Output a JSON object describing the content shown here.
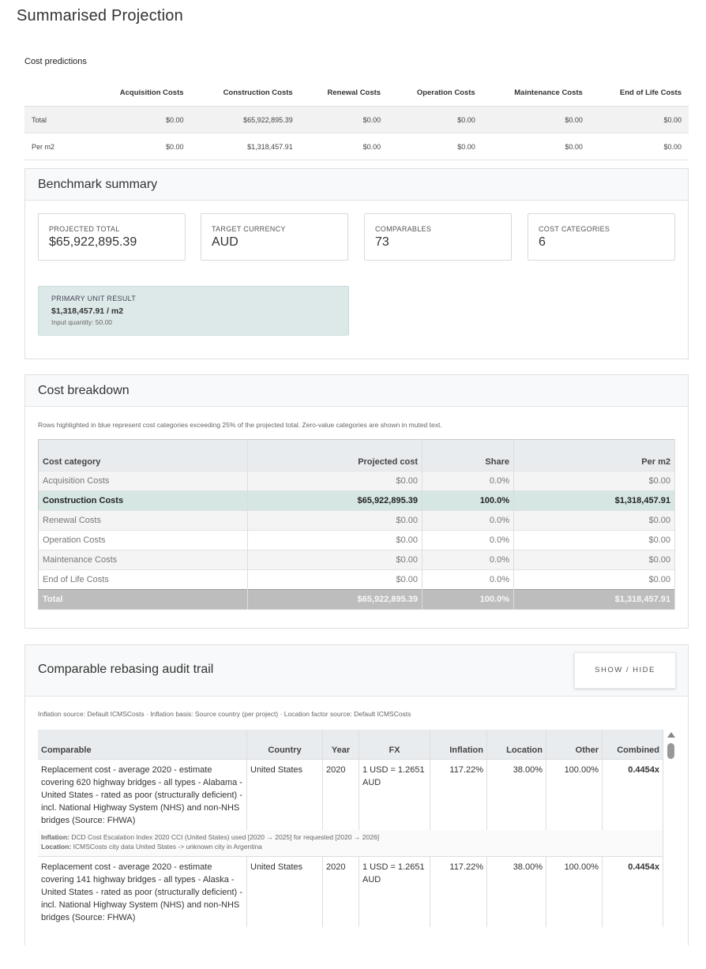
{
  "page": {
    "title": "Summarised Projection"
  },
  "cost_predictions": {
    "label": "Cost predictions",
    "columns": [
      "",
      "Acquisition Costs",
      "Construction Costs",
      "Renewal Costs",
      "Operation Costs",
      "Maintenance Costs",
      "End of Life Costs"
    ],
    "rows": [
      [
        "Total",
        "$0.00",
        "$65,922,895.39",
        "$0.00",
        "$0.00",
        "$0.00",
        "$0.00"
      ],
      [
        "Per m2",
        "$0.00",
        "$1,318,457.91",
        "$0.00",
        "$0.00",
        "$0.00",
        "$0.00"
      ]
    ]
  },
  "benchmark": {
    "title": "Benchmark summary",
    "stats": [
      {
        "label": "PROJECTED TOTAL",
        "value": "$65,922,895.39"
      },
      {
        "label": "TARGET CURRENCY",
        "value": "AUD"
      },
      {
        "label": "COMPARABLES",
        "value": "73"
      },
      {
        "label": "COST CATEGORIES",
        "value": "6"
      }
    ],
    "primary": {
      "label": "PRIMARY UNIT RESULT",
      "value": "$1,318,457.91 / m2",
      "input": "Input quantity: 50.00"
    }
  },
  "breakdown": {
    "title": "Cost breakdown",
    "note": "Rows highlighted in blue represent cost categories exceeding 25% of the projected total. Zero-value categories are shown in muted text.",
    "columns": [
      "Cost category",
      "Projected cost",
      "Share",
      "Per m2"
    ],
    "rows": [
      [
        "Acquisition Costs",
        "$0.00",
        "0.0%",
        "$0.00"
      ],
      [
        "Construction Costs",
        "$65,922,895.39",
        "100.0%",
        "$1,318,457.91"
      ],
      [
        "Renewal Costs",
        "$0.00",
        "0.0%",
        "$0.00"
      ],
      [
        "Operation Costs",
        "$0.00",
        "0.0%",
        "$0.00"
      ],
      [
        "Maintenance Costs",
        "$0.00",
        "0.0%",
        "$0.00"
      ],
      [
        "End of Life Costs",
        "$0.00",
        "0.0%",
        "$0.00"
      ]
    ],
    "total": [
      "Total",
      "$65,922,895.39",
      "100.0%",
      "$1,318,457.91"
    ]
  },
  "audit": {
    "title": "Comparable rebasing audit trail",
    "toggle_label": "SHOW / HIDE",
    "source_note": "Inflation source: Default ICMSCosts · Inflation basis: Source country (per project) · Location factor source: Default ICMSCosts",
    "columns": [
      "Comparable",
      "Country",
      "Year",
      "FX",
      "Inflation",
      "Location",
      "Other",
      "Combined"
    ],
    "rows": [
      {
        "cells": [
          "Replacement cost - average 2020 - estimate covering 620 highway bridges - all types - Alabama - United States - rated as poor (structurally deficient) - incl. National Highway System (NHS) and non-NHS bridges (Source: FHWA)",
          "United States",
          "2020",
          "1 USD = 1.2651 AUD",
          "117.22%",
          "38.00%",
          "100.00%",
          "0.4454x"
        ],
        "inflation_label": "Inflation:",
        "inflation_text": " DCD Cost Escalation Index 2020 CCI (United States) used [2020 → 2025] for requested [2020 → 2026]",
        "location_label": "Location:",
        "location_text": " ICMSCosts city data United States -> unknown city in Argentina"
      },
      {
        "cells": [
          "Replacement cost - average 2020 - estimate covering 141 highway bridges - all types - Alaska - United States - rated as poor (structurally deficient) - incl. National Highway System (NHS) and non-NHS bridges (Source: FHWA)",
          "United States",
          "2020",
          "1 USD = 1.2651 AUD",
          "117.22%",
          "38.00%",
          "100.00%",
          "0.4454x"
        ]
      }
    ]
  }
}
